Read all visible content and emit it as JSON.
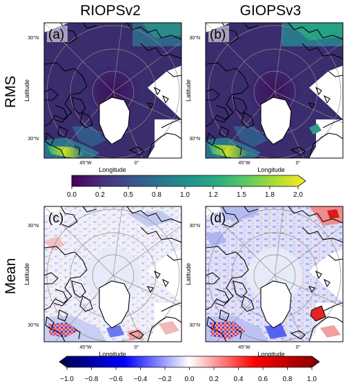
{
  "figure": {
    "column_titles": [
      "RIOPSv2",
      "GIOPSv3"
    ],
    "row_titles": [
      "RMS",
      "Mean"
    ]
  },
  "panels": [
    {
      "id": "a",
      "label": "(a)",
      "model": "RIOPSv2",
      "row": "RMS",
      "xlabel": "Longitude",
      "ylabel": "Latitude",
      "lat_ticks": [
        "30°N",
        "30°N"
      ],
      "lon_ticks": [
        "45°W",
        "0°"
      ]
    },
    {
      "id": "b",
      "label": "(b)",
      "model": "GIOPSv3",
      "row": "RMS",
      "xlabel": "Longitude",
      "ylabel": "Latitude",
      "lat_ticks": [
        "30°N",
        "30°N"
      ],
      "lon_ticks": [
        "45°W",
        "0°"
      ]
    },
    {
      "id": "c",
      "label": "(c)",
      "model": "RIOPSv2",
      "row": "Mean",
      "xlabel": "Longitude",
      "ylabel": "Latitude",
      "lat_ticks": [
        "30°N",
        "30°N"
      ],
      "lon_ticks": [
        "45°W",
        "0°"
      ]
    },
    {
      "id": "d",
      "label": "(d)",
      "model": "GIOPSv3",
      "row": "Mean",
      "xlabel": "Longitude",
      "ylabel": "Latitude",
      "lat_ticks": [
        "30°N",
        "30°N"
      ],
      "lon_ticks": [
        "45°W",
        "0°"
      ]
    }
  ],
  "chart_data": [
    {
      "type": "heatmap",
      "name": "RMS colorbar",
      "colormap": "viridis",
      "vmin": 0.0,
      "vmax": 2.0,
      "extend": "max",
      "ticks": [
        "0.0",
        "0.2",
        "0.5",
        "0.8",
        "1.0",
        "1.2",
        "1.5",
        "1.8",
        "2.0"
      ],
      "tick_values": [
        0.0,
        0.25,
        0.5,
        0.75,
        1.0,
        1.25,
        1.5,
        1.75,
        2.0
      ],
      "colors": [
        "#440154",
        "#472d7b",
        "#3b528b",
        "#2c728e",
        "#21918c",
        "#28ae80",
        "#5ec962",
        "#addc30",
        "#fde725"
      ]
    },
    {
      "type": "heatmap",
      "name": "Mean colorbar",
      "colormap": "seismic",
      "vmin": -1.0,
      "vmax": 1.0,
      "extend": "both",
      "ticks": [
        "−1.0",
        "−0.8",
        "−0.6",
        "−0.4",
        "−0.2",
        "0.0",
        "0.2",
        "0.4",
        "0.6",
        "0.8",
        "1.0"
      ],
      "tick_values": [
        -1.0,
        -0.8,
        -0.6,
        -0.4,
        -0.2,
        0.0,
        0.2,
        0.4,
        0.6,
        0.8,
        1.0
      ],
      "colors": [
        "#00004c",
        "#0000ff",
        "#ffffff",
        "#ff0000",
        "#7f0000"
      ]
    }
  ],
  "colors": {
    "rms_background": "#3b2c6e",
    "rms_dark": "#45125e",
    "rms_mid": "#2f6b8d",
    "rms_high": "#b9df2a",
    "mean_background": "#f3f3fb",
    "ice_overlay": "#e8ebf7"
  }
}
